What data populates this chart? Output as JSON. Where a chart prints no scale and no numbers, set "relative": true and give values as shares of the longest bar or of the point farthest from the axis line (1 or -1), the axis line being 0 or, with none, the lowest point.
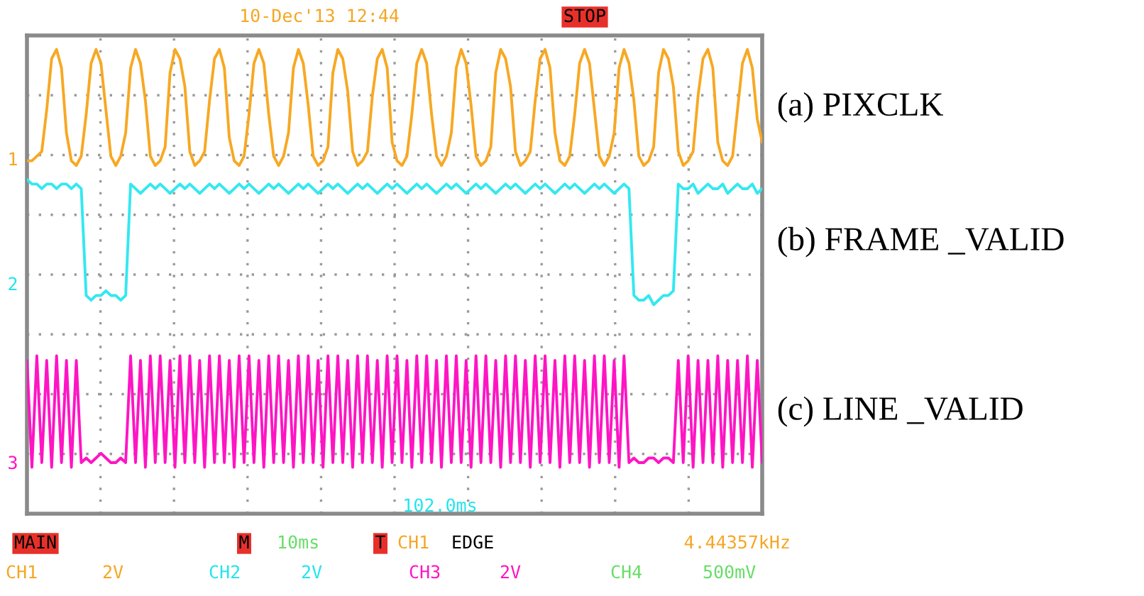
{
  "chart_data": {
    "type": "line",
    "relative": true,
    "grid": true,
    "categories": [
      null,
      null,
      null,
      null,
      null,
      null,
      null,
      null,
      null,
      null,
      null,
      null,
      null,
      null,
      null,
      null,
      null,
      null,
      null,
      null,
      null,
      null,
      null,
      null,
      null,
      null,
      null,
      null,
      null,
      null,
      null,
      null,
      null,
      null,
      null,
      null,
      null,
      null,
      null,
      null,
      null,
      null,
      null,
      null,
      null,
      null,
      null,
      null,
      null,
      null,
      null,
      null,
      null,
      null,
      null,
      null,
      null,
      null,
      null,
      null,
      null,
      null,
      null,
      null,
      null,
      null,
      null,
      null,
      null,
      null,
      null,
      null,
      null,
      null,
      null,
      null,
      null,
      null,
      null,
      null,
      null,
      null,
      null,
      null,
      null,
      null,
      null,
      null,
      null,
      null,
      null,
      null,
      null,
      null,
      null,
      null,
      null,
      null,
      null,
      null,
      null,
      null,
      null,
      null,
      null,
      null,
      null,
      null,
      null,
      null,
      null,
      null,
      null,
      null,
      null,
      null,
      null,
      null,
      null,
      null,
      null,
      null,
      null,
      null,
      null,
      null,
      null,
      null,
      null,
      null,
      null,
      null,
      null,
      null,
      null,
      null,
      null,
      null,
      null,
      null,
      null,
      null,
      null,
      null,
      null,
      null,
      null,
      null,
      null,
      null
    ],
    "series": [
      {
        "name": "(a) PIXCLK",
        "color": "#f7a823",
        "values": [
          0.76,
          0.76,
          0.77,
          0.78,
          0.87,
          0.98,
          1.0,
          0.96,
          0.82,
          0.76,
          0.75,
          0.77,
          0.86,
          0.97,
          1.0,
          0.97,
          0.87,
          0.77,
          0.75,
          0.77,
          0.82,
          0.96,
          1.0,
          0.97,
          0.89,
          0.77,
          0.75,
          0.76,
          0.79,
          0.95,
          1.0,
          0.98,
          0.92,
          0.78,
          0.75,
          0.76,
          0.78,
          0.89,
          0.98,
          1.0,
          0.96,
          0.81,
          0.76,
          0.75,
          0.77,
          0.86,
          0.97,
          1.0,
          0.97,
          0.86,
          0.77,
          0.75,
          0.77,
          0.82,
          0.96,
          1.0,
          0.97,
          0.88,
          0.77,
          0.75,
          0.76,
          0.79,
          0.95,
          1.0,
          0.98,
          0.91,
          0.78,
          0.75,
          0.76,
          0.78,
          0.9,
          0.98,
          1.0,
          0.96,
          0.8,
          0.76,
          0.75,
          0.77,
          0.86,
          0.97,
          1.0,
          0.97,
          0.86,
          0.77,
          0.75,
          0.77,
          0.82,
          0.96,
          1.0,
          0.97,
          0.88,
          0.77,
          0.75,
          0.76,
          0.79,
          0.95,
          1.0,
          0.98,
          0.92,
          0.78,
          0.75,
          0.76,
          0.78,
          0.89,
          0.98,
          1.0,
          0.96,
          0.82,
          0.76,
          0.75,
          0.77,
          0.86,
          0.97,
          1.0,
          0.97,
          0.87,
          0.77,
          0.75,
          0.77,
          0.82,
          0.96,
          1.0,
          0.97,
          0.89,
          0.77,
          0.75,
          0.76,
          0.79,
          0.95,
          1.0,
          0.98,
          0.92,
          0.78,
          0.75,
          0.76,
          0.78,
          0.9,
          0.98,
          1.0,
          0.96,
          0.8,
          0.76,
          0.75,
          0.77,
          0.87,
          0.97,
          1.0,
          0.96,
          0.85,
          0.8
        ]
      },
      {
        "name": "(b) FRAME _VALID",
        "color": "#33e8f0",
        "values": [
          0.72,
          0.71,
          0.71,
          0.7,
          0.71,
          0.71,
          0.7,
          0.71,
          0.71,
          0.7,
          0.71,
          0.7,
          0.47,
          0.46,
          0.47,
          0.47,
          0.48,
          0.47,
          0.47,
          0.46,
          0.47,
          0.71,
          0.7,
          0.69,
          0.7,
          0.71,
          0.7,
          0.71,
          0.7,
          0.69,
          0.7,
          0.71,
          0.7,
          0.71,
          0.7,
          0.69,
          0.7,
          0.71,
          0.7,
          0.71,
          0.7,
          0.69,
          0.7,
          0.71,
          0.7,
          0.71,
          0.7,
          0.69,
          0.7,
          0.71,
          0.7,
          0.71,
          0.7,
          0.69,
          0.7,
          0.71,
          0.7,
          0.71,
          0.7,
          0.69,
          0.7,
          0.71,
          0.7,
          0.71,
          0.7,
          0.69,
          0.7,
          0.71,
          0.7,
          0.71,
          0.7,
          0.69,
          0.7,
          0.71,
          0.7,
          0.71,
          0.7,
          0.69,
          0.7,
          0.71,
          0.7,
          0.71,
          0.7,
          0.69,
          0.7,
          0.71,
          0.7,
          0.71,
          0.7,
          0.69,
          0.7,
          0.71,
          0.7,
          0.71,
          0.7,
          0.69,
          0.7,
          0.71,
          0.7,
          0.71,
          0.7,
          0.69,
          0.7,
          0.71,
          0.7,
          0.71,
          0.7,
          0.69,
          0.7,
          0.71,
          0.7,
          0.71,
          0.7,
          0.69,
          0.7,
          0.71,
          0.7,
          0.71,
          0.7,
          0.69,
          0.7,
          0.71,
          0.7,
          0.47,
          0.46,
          0.46,
          0.47,
          0.45,
          0.46,
          0.47,
          0.47,
          0.48,
          0.71,
          0.7,
          0.7,
          0.71,
          0.69,
          0.7,
          0.71,
          0.7,
          0.7,
          0.71,
          0.69,
          0.7,
          0.71,
          0.7,
          0.7,
          0.71,
          0.69,
          0.7
        ]
      },
      {
        "name": "(c) LINE _VALID",
        "color": "#ff14c4",
        "values": [
          0.33,
          0.1,
          0.34,
          0.11,
          0.33,
          0.1,
          0.34,
          0.11,
          0.33,
          0.1,
          0.33,
          0.11,
          0.12,
          0.11,
          0.12,
          0.13,
          0.12,
          0.11,
          0.11,
          0.12,
          0.11,
          0.34,
          0.11,
          0.33,
          0.1,
          0.34,
          0.11,
          0.34,
          0.11,
          0.33,
          0.1,
          0.34,
          0.11,
          0.34,
          0.11,
          0.33,
          0.1,
          0.34,
          0.11,
          0.34,
          0.11,
          0.33,
          0.1,
          0.34,
          0.11,
          0.34,
          0.11,
          0.33,
          0.1,
          0.34,
          0.11,
          0.34,
          0.11,
          0.33,
          0.1,
          0.34,
          0.11,
          0.34,
          0.11,
          0.33,
          0.1,
          0.34,
          0.11,
          0.34,
          0.11,
          0.33,
          0.1,
          0.34,
          0.11,
          0.34,
          0.11,
          0.33,
          0.1,
          0.34,
          0.11,
          0.34,
          0.11,
          0.33,
          0.1,
          0.34,
          0.11,
          0.34,
          0.11,
          0.33,
          0.1,
          0.34,
          0.11,
          0.34,
          0.11,
          0.33,
          0.1,
          0.34,
          0.11,
          0.34,
          0.11,
          0.33,
          0.1,
          0.34,
          0.11,
          0.34,
          0.11,
          0.33,
          0.1,
          0.34,
          0.11,
          0.34,
          0.11,
          0.33,
          0.1,
          0.34,
          0.11,
          0.34,
          0.11,
          0.33,
          0.1,
          0.34,
          0.11,
          0.34,
          0.11,
          0.33,
          0.1,
          0.34,
          0.11,
          0.12,
          0.11,
          0.11,
          0.12,
          0.12,
          0.11,
          0.12,
          0.12,
          0.11,
          0.33,
          0.11,
          0.34,
          0.1,
          0.33,
          0.11,
          0.33,
          0.11,
          0.34,
          0.1,
          0.33,
          0.11,
          0.33,
          0.11,
          0.34,
          0.1,
          0.33,
          0.11
        ]
      }
    ],
    "annotations": [
      "10-Dec'13 12:44",
      "STOP",
      "102.0ms",
      "MAIN",
      "M",
      "10ms",
      "T",
      "CH1",
      "EDGE",
      "4.44357kHz",
      "CH1",
      "2V",
      "CH2",
      "2V",
      "CH3",
      "2V",
      "CH4",
      "500mV",
      "1",
      "2",
      "3"
    ]
  }
}
